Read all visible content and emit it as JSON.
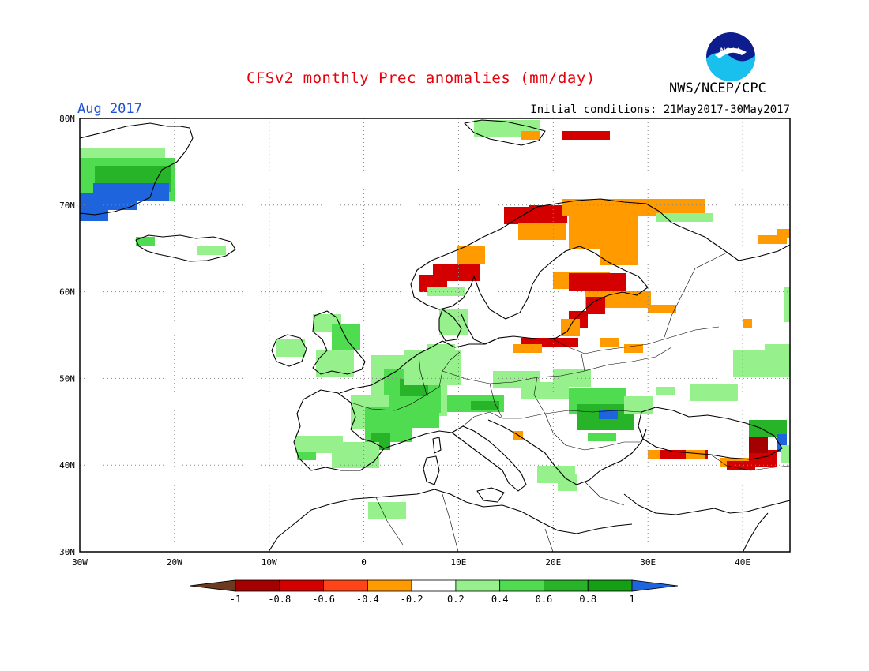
{
  "header": {
    "title": "CFSv2 monthly Prec anomalies (mm/day)",
    "organization": "NWS/NCEP/CPC",
    "period": "Aug 2017",
    "initial_conditions": "Initial conditions: 21May2017-30May2017"
  },
  "logo": {
    "icon": "noaa-logo-icon",
    "text": "NOAA"
  },
  "map": {
    "region": "Europe",
    "lon_range": [
      -30,
      45
    ],
    "lat_range": [
      30,
      80
    ],
    "grid": true,
    "lat_ticks": [
      "30N",
      "40N",
      "50N",
      "60N",
      "70N",
      "80N"
    ],
    "lon_ticks": [
      "30W",
      "20W",
      "10W",
      "0",
      "10E",
      "20E",
      "30E",
      "40E"
    ]
  },
  "legend": {
    "labels": [
      "-1",
      "-0.8",
      "-0.6",
      "-0.4",
      "-0.2",
      "0.2",
      "0.4",
      "0.6",
      "0.8",
      "1"
    ],
    "colors": [
      "#6b3a1f",
      "#a50000",
      "#d40000",
      "#ff4418",
      "#ff9a00",
      "#ffffff",
      "#96f08c",
      "#50dc50",
      "#28b428",
      "#14a014",
      "#1e64dc"
    ]
  },
  "anomaly_colors": {
    "light_green": "#96f08c",
    "green": "#50dc50",
    "dark_green": "#28b428",
    "blue": "#1e64dc",
    "orange": "#ff9a00",
    "red_orange": "#ff4418",
    "red": "#d40000",
    "dark_red": "#a50000"
  }
}
